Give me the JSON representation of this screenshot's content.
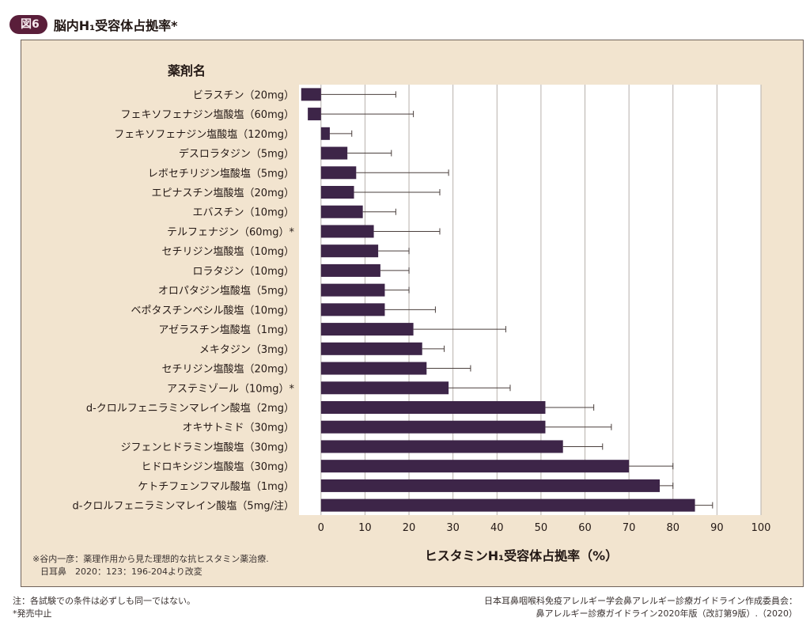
{
  "figure": {
    "badge": "図6",
    "title": "脳内H₁受容体占拠率*"
  },
  "chart_data": {
    "type": "bar",
    "orientation": "horizontal",
    "categories_label": "薬剤名",
    "xlabel": "ヒスタミンH₁受容体占拠率（%）",
    "xlim": [
      -5,
      100
    ],
    "xticks": [
      0,
      10,
      20,
      30,
      40,
      50,
      60,
      70,
      80,
      90,
      100
    ],
    "grid": true,
    "error_bars": true,
    "bar_color": "#3d2548",
    "items": [
      {
        "label": "ビラスチン（20mg）",
        "value": -4.5,
        "err": 17
      },
      {
        "label": "フェキソフェナジン塩酸塩（60mg）",
        "value": -3,
        "err": 21
      },
      {
        "label": "フェキソフェナジン塩酸塩（120mg）",
        "value": 2,
        "err": 7
      },
      {
        "label": "デスロラタジン（5mg）",
        "value": 6,
        "err": 16
      },
      {
        "label": "レボセチリジン塩酸塩（5mg）",
        "value": 8,
        "err": 29
      },
      {
        "label": "エピナスチン塩酸塩（20mg）",
        "value": 7.5,
        "err": 27
      },
      {
        "label": "エバスチン（10mg）",
        "value": 9.5,
        "err": 17
      },
      {
        "label": "テルフェナジン（60mg）*",
        "value": 12,
        "err": 27
      },
      {
        "label": "セチリジン塩酸塩（10mg）",
        "value": 13,
        "err": 20
      },
      {
        "label": "ロラタジン（10mg）",
        "value": 13.5,
        "err": 20
      },
      {
        "label": "オロパタジン塩酸塩（5mg）",
        "value": 14.5,
        "err": 20
      },
      {
        "label": "ベポタスチンベシル酸塩（10mg）",
        "value": 14.5,
        "err": 26
      },
      {
        "label": "アゼラスチン塩酸塩（1mg）",
        "value": 21,
        "err": 42
      },
      {
        "label": "メキタジン（3mg）",
        "value": 23,
        "err": 28
      },
      {
        "label": "セチリジン塩酸塩（20mg）",
        "value": 24,
        "err": 34
      },
      {
        "label": "アステミゾール（10mg）*",
        "value": 29,
        "err": 43
      },
      {
        "label": "d-クロルフェニラミンマレイン酸塩（2mg）",
        "value": 51,
        "err": 62
      },
      {
        "label": "オキサトミド（30mg）",
        "value": 51,
        "err": 66
      },
      {
        "label": "ジフェンヒドラミン塩酸塩（30mg）",
        "value": 55,
        "err": 64
      },
      {
        "label": "ヒドロキシジン塩酸塩（30mg）",
        "value": 70,
        "err": 80
      },
      {
        "label": "ケトチフェンフマル酸塩（1mg）",
        "value": 77,
        "err": 80
      },
      {
        "label": "d-クロルフェニラミンマレイン酸塩（5mg/注）",
        "value": 85,
        "err": 89
      }
    ]
  },
  "source_in_panel": {
    "line1": "※谷内一彦：薬理作用から見た理想的な抗ヒスタミン薬治療.",
    "line2": "日耳鼻　2020：123：196-204より改変"
  },
  "notes": {
    "line1": "注：各試験での条件は必ずしも同一ではない。",
    "line2": "*発売中止"
  },
  "credit": {
    "line1": "日本耳鼻咽喉科免疫アレルギー学会鼻アレルギー診療ガイドライン作成委員会：",
    "line2": "鼻アレルギー診療ガイドライン2020年版（改訂第9版）.（2020）"
  }
}
